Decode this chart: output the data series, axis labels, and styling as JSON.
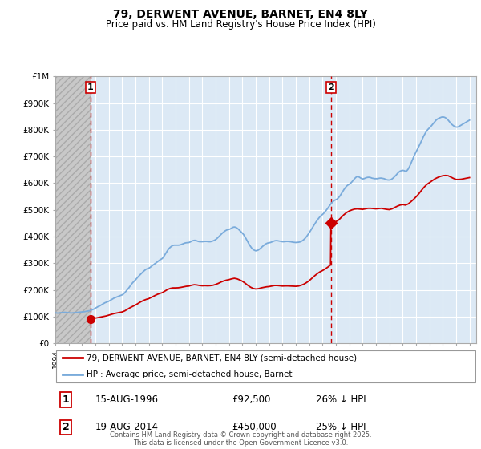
{
  "title": "79, DERWENT AVENUE, BARNET, EN4 8LY",
  "subtitle": "Price paid vs. HM Land Registry's House Price Index (HPI)",
  "legend_line1": "79, DERWENT AVENUE, BARNET, EN4 8LY (semi-detached house)",
  "legend_line2": "HPI: Average price, semi-detached house, Barnet",
  "annotation1_date": "15-AUG-1996",
  "annotation1_price": "£92,500",
  "annotation1_hpi": "26% ↓ HPI",
  "annotation1_year": 1996.62,
  "annotation1_value": 92500,
  "annotation2_date": "19-AUG-2014",
  "annotation2_price": "£450,000",
  "annotation2_hpi": "25% ↓ HPI",
  "annotation2_year": 2014.63,
  "annotation2_value": 450000,
  "background_color": "#ffffff",
  "chart_bg_color": "#dce9f5",
  "grid_color": "#ffffff",
  "red_line_color": "#cc0000",
  "blue_line_color": "#7aabdb",
  "vline_color": "#cc0000",
  "footer": "Contains HM Land Registry data © Crown copyright and database right 2025.\nThis data is licensed under the Open Government Licence v3.0.",
  "xmin": 1994,
  "xmax": 2025.5,
  "ymin": 0,
  "ymax": 1000000,
  "hpi_data": [
    [
      1994.0,
      115000
    ],
    [
      1994.1,
      114000
    ],
    [
      1994.2,
      113500
    ],
    [
      1994.3,
      114500
    ],
    [
      1994.4,
      115000
    ],
    [
      1994.5,
      115500
    ],
    [
      1994.6,
      116000
    ],
    [
      1994.7,
      116500
    ],
    [
      1994.8,
      116000
    ],
    [
      1994.9,
      115500
    ],
    [
      1995.0,
      115000
    ],
    [
      1995.1,
      114500
    ],
    [
      1995.2,
      114000
    ],
    [
      1995.3,
      114500
    ],
    [
      1995.4,
      115000
    ],
    [
      1995.5,
      115500
    ],
    [
      1995.6,
      116000
    ],
    [
      1995.7,
      116500
    ],
    [
      1995.8,
      117000
    ],
    [
      1995.9,
      117500
    ],
    [
      1996.0,
      118000
    ],
    [
      1996.1,
      118500
    ],
    [
      1996.2,
      119000
    ],
    [
      1996.3,
      120000
    ],
    [
      1996.4,
      121000
    ],
    [
      1996.5,
      122000
    ],
    [
      1996.6,
      123000
    ],
    [
      1996.7,
      125000
    ],
    [
      1996.8,
      127000
    ],
    [
      1996.9,
      129000
    ],
    [
      1997.0,
      132000
    ],
    [
      1997.1,
      135000
    ],
    [
      1997.2,
      138000
    ],
    [
      1997.3,
      140000
    ],
    [
      1997.4,
      143000
    ],
    [
      1997.5,
      146000
    ],
    [
      1997.6,
      149000
    ],
    [
      1997.7,
      152000
    ],
    [
      1997.8,
      154000
    ],
    [
      1997.9,
      156000
    ],
    [
      1998.0,
      158000
    ],
    [
      1998.1,
      161000
    ],
    [
      1998.2,
      164000
    ],
    [
      1998.3,
      167000
    ],
    [
      1998.4,
      170000
    ],
    [
      1998.5,
      172000
    ],
    [
      1998.6,
      174000
    ],
    [
      1998.7,
      176000
    ],
    [
      1998.8,
      178000
    ],
    [
      1998.9,
      180000
    ],
    [
      1999.0,
      182000
    ],
    [
      1999.1,
      185000
    ],
    [
      1999.2,
      190000
    ],
    [
      1999.3,
      196000
    ],
    [
      1999.4,
      202000
    ],
    [
      1999.5,
      208000
    ],
    [
      1999.6,
      215000
    ],
    [
      1999.7,
      222000
    ],
    [
      1999.8,
      228000
    ],
    [
      1999.9,
      233000
    ],
    [
      2000.0,
      238000
    ],
    [
      2000.1,
      244000
    ],
    [
      2000.2,
      250000
    ],
    [
      2000.3,
      255000
    ],
    [
      2000.4,
      260000
    ],
    [
      2000.5,
      265000
    ],
    [
      2000.6,
      270000
    ],
    [
      2000.7,
      274000
    ],
    [
      2000.8,
      278000
    ],
    [
      2000.9,
      280000
    ],
    [
      2001.0,
      282000
    ],
    [
      2001.1,
      285000
    ],
    [
      2001.2,
      289000
    ],
    [
      2001.3,
      293000
    ],
    [
      2001.4,
      297000
    ],
    [
      2001.5,
      300000
    ],
    [
      2001.6,
      304000
    ],
    [
      2001.7,
      308000
    ],
    [
      2001.8,
      312000
    ],
    [
      2001.9,
      315000
    ],
    [
      2002.0,
      318000
    ],
    [
      2002.1,
      324000
    ],
    [
      2002.2,
      332000
    ],
    [
      2002.3,
      340000
    ],
    [
      2002.4,
      348000
    ],
    [
      2002.5,
      355000
    ],
    [
      2002.6,
      360000
    ],
    [
      2002.7,
      364000
    ],
    [
      2002.8,
      367000
    ],
    [
      2002.9,
      368000
    ],
    [
      2003.0,
      368000
    ],
    [
      2003.1,
      368000
    ],
    [
      2003.2,
      368000
    ],
    [
      2003.3,
      368500
    ],
    [
      2003.4,
      370000
    ],
    [
      2003.5,
      372000
    ],
    [
      2003.6,
      374000
    ],
    [
      2003.7,
      376000
    ],
    [
      2003.8,
      377000
    ],
    [
      2003.9,
      377500
    ],
    [
      2004.0,
      378000
    ],
    [
      2004.1,
      380000
    ],
    [
      2004.2,
      383000
    ],
    [
      2004.3,
      385000
    ],
    [
      2004.4,
      386000
    ],
    [
      2004.5,
      386000
    ],
    [
      2004.6,
      384000
    ],
    [
      2004.7,
      382000
    ],
    [
      2004.8,
      381000
    ],
    [
      2004.9,
      381000
    ],
    [
      2005.0,
      381000
    ],
    [
      2005.1,
      381500
    ],
    [
      2005.2,
      382000
    ],
    [
      2005.3,
      382000
    ],
    [
      2005.4,
      381500
    ],
    [
      2005.5,
      381000
    ],
    [
      2005.6,
      381000
    ],
    [
      2005.7,
      382000
    ],
    [
      2005.8,
      384000
    ],
    [
      2005.9,
      386000
    ],
    [
      2006.0,
      389000
    ],
    [
      2006.1,
      393000
    ],
    [
      2006.2,
      398000
    ],
    [
      2006.3,
      403000
    ],
    [
      2006.4,
      408000
    ],
    [
      2006.5,
      413000
    ],
    [
      2006.6,
      417000
    ],
    [
      2006.7,
      421000
    ],
    [
      2006.8,
      424000
    ],
    [
      2006.9,
      426000
    ],
    [
      2007.0,
      427000
    ],
    [
      2007.1,
      429000
    ],
    [
      2007.2,
      432000
    ],
    [
      2007.3,
      435000
    ],
    [
      2007.4,
      436000
    ],
    [
      2007.5,
      435000
    ],
    [
      2007.6,
      432000
    ],
    [
      2007.7,
      428000
    ],
    [
      2007.8,
      423000
    ],
    [
      2007.9,
      418000
    ],
    [
      2008.0,
      413000
    ],
    [
      2008.1,
      407000
    ],
    [
      2008.2,
      399000
    ],
    [
      2008.3,
      390000
    ],
    [
      2008.4,
      381000
    ],
    [
      2008.5,
      372000
    ],
    [
      2008.6,
      364000
    ],
    [
      2008.7,
      357000
    ],
    [
      2008.8,
      352000
    ],
    [
      2008.9,
      349000
    ],
    [
      2009.0,
      347000
    ],
    [
      2009.1,
      348000
    ],
    [
      2009.2,
      350000
    ],
    [
      2009.3,
      354000
    ],
    [
      2009.4,
      358000
    ],
    [
      2009.5,
      363000
    ],
    [
      2009.6,
      367000
    ],
    [
      2009.7,
      371000
    ],
    [
      2009.8,
      374000
    ],
    [
      2009.9,
      376000
    ],
    [
      2010.0,
      377000
    ],
    [
      2010.1,
      378000
    ],
    [
      2010.2,
      380000
    ],
    [
      2010.3,
      382000
    ],
    [
      2010.4,
      384000
    ],
    [
      2010.5,
      385000
    ],
    [
      2010.6,
      385000
    ],
    [
      2010.7,
      384000
    ],
    [
      2010.8,
      383000
    ],
    [
      2010.9,
      382000
    ],
    [
      2011.0,
      381000
    ],
    [
      2011.1,
      381000
    ],
    [
      2011.2,
      381500
    ],
    [
      2011.3,
      382000
    ],
    [
      2011.4,
      382000
    ],
    [
      2011.5,
      381500
    ],
    [
      2011.6,
      381000
    ],
    [
      2011.7,
      380000
    ],
    [
      2011.8,
      379000
    ],
    [
      2011.9,
      378500
    ],
    [
      2012.0,
      378000
    ],
    [
      2012.1,
      378500
    ],
    [
      2012.2,
      379000
    ],
    [
      2012.3,
      380000
    ],
    [
      2012.4,
      382000
    ],
    [
      2012.5,
      385000
    ],
    [
      2012.6,
      389000
    ],
    [
      2012.7,
      394000
    ],
    [
      2012.8,
      400000
    ],
    [
      2012.9,
      407000
    ],
    [
      2013.0,
      414000
    ],
    [
      2013.1,
      422000
    ],
    [
      2013.2,
      430000
    ],
    [
      2013.3,
      438000
    ],
    [
      2013.4,
      446000
    ],
    [
      2013.5,
      454000
    ],
    [
      2013.6,
      461000
    ],
    [
      2013.7,
      468000
    ],
    [
      2013.8,
      474000
    ],
    [
      2013.9,
      479000
    ],
    [
      2014.0,
      483000
    ],
    [
      2014.1,
      488000
    ],
    [
      2014.2,
      494000
    ],
    [
      2014.3,
      500000
    ],
    [
      2014.4,
      507000
    ],
    [
      2014.5,
      514000
    ],
    [
      2014.6,
      521000
    ],
    [
      2014.7,
      527000
    ],
    [
      2014.8,
      532000
    ],
    [
      2014.9,
      536000
    ],
    [
      2015.0,
      538000
    ],
    [
      2015.1,
      541000
    ],
    [
      2015.2,
      546000
    ],
    [
      2015.3,
      552000
    ],
    [
      2015.4,
      560000
    ],
    [
      2015.5,
      568000
    ],
    [
      2015.6,
      576000
    ],
    [
      2015.7,
      583000
    ],
    [
      2015.8,
      589000
    ],
    [
      2015.9,
      593000
    ],
    [
      2016.0,
      596000
    ],
    [
      2016.1,
      600000
    ],
    [
      2016.2,
      605000
    ],
    [
      2016.3,
      611000
    ],
    [
      2016.4,
      617000
    ],
    [
      2016.5,
      622000
    ],
    [
      2016.6,
      625000
    ],
    [
      2016.7,
      624000
    ],
    [
      2016.8,
      621000
    ],
    [
      2016.9,
      618000
    ],
    [
      2017.0,
      616000
    ],
    [
      2017.1,
      617000
    ],
    [
      2017.2,
      619000
    ],
    [
      2017.3,
      621000
    ],
    [
      2017.4,
      622000
    ],
    [
      2017.5,
      622000
    ],
    [
      2017.6,
      621000
    ],
    [
      2017.7,
      619000
    ],
    [
      2017.8,
      618000
    ],
    [
      2017.9,
      617000
    ],
    [
      2018.0,
      617000
    ],
    [
      2018.1,
      617000
    ],
    [
      2018.2,
      618000
    ],
    [
      2018.3,
      619000
    ],
    [
      2018.4,
      619000
    ],
    [
      2018.5,
      618000
    ],
    [
      2018.6,
      617000
    ],
    [
      2018.7,
      615000
    ],
    [
      2018.8,
      613000
    ],
    [
      2018.9,
      612000
    ],
    [
      2019.0,
      612000
    ],
    [
      2019.1,
      613000
    ],
    [
      2019.2,
      616000
    ],
    [
      2019.3,
      620000
    ],
    [
      2019.4,
      625000
    ],
    [
      2019.5,
      630000
    ],
    [
      2019.6,
      636000
    ],
    [
      2019.7,
      641000
    ],
    [
      2019.8,
      645000
    ],
    [
      2019.9,
      647000
    ],
    [
      2020.0,
      648000
    ],
    [
      2020.1,
      647000
    ],
    [
      2020.2,
      645000
    ],
    [
      2020.3,
      646000
    ],
    [
      2020.4,
      652000
    ],
    [
      2020.5,
      661000
    ],
    [
      2020.6,
      672000
    ],
    [
      2020.7,
      684000
    ],
    [
      2020.8,
      696000
    ],
    [
      2020.9,
      707000
    ],
    [
      2021.0,
      717000
    ],
    [
      2021.1,
      727000
    ],
    [
      2021.2,
      737000
    ],
    [
      2021.3,
      747000
    ],
    [
      2021.4,
      758000
    ],
    [
      2021.5,
      769000
    ],
    [
      2021.6,
      779000
    ],
    [
      2021.7,
      788000
    ],
    [
      2021.8,
      796000
    ],
    [
      2021.9,
      802000
    ],
    [
      2022.0,
      807000
    ],
    [
      2022.1,
      812000
    ],
    [
      2022.2,
      818000
    ],
    [
      2022.3,
      824000
    ],
    [
      2022.4,
      830000
    ],
    [
      2022.5,
      836000
    ],
    [
      2022.6,
      840000
    ],
    [
      2022.7,
      843000
    ],
    [
      2022.8,
      845000
    ],
    [
      2022.9,
      847000
    ],
    [
      2023.0,
      848000
    ],
    [
      2023.1,
      847000
    ],
    [
      2023.2,
      845000
    ],
    [
      2023.3,
      841000
    ],
    [
      2023.4,
      836000
    ],
    [
      2023.5,
      830000
    ],
    [
      2023.6,
      824000
    ],
    [
      2023.7,
      819000
    ],
    [
      2023.8,
      815000
    ],
    [
      2023.9,
      812000
    ],
    [
      2024.0,
      810000
    ],
    [
      2024.1,
      810000
    ],
    [
      2024.2,
      812000
    ],
    [
      2024.3,
      815000
    ],
    [
      2024.4,
      818000
    ],
    [
      2024.5,
      821000
    ],
    [
      2024.6,
      824000
    ],
    [
      2024.7,
      827000
    ],
    [
      2024.8,
      830000
    ],
    [
      2024.9,
      833000
    ],
    [
      2025.0,
      836000
    ]
  ],
  "red_data": [
    [
      1996.62,
      92500
    ],
    [
      1996.7,
      93000
    ],
    [
      1996.8,
      93500
    ],
    [
      1996.9,
      94000
    ],
    [
      1997.0,
      95000
    ],
    [
      1997.2,
      97000
    ],
    [
      1997.4,
      99000
    ],
    [
      1997.6,
      101000
    ],
    [
      1997.8,
      103000
    ],
    [
      1998.0,
      106000
    ],
    [
      1998.2,
      109000
    ],
    [
      1998.4,
      112000
    ],
    [
      1998.6,
      114000
    ],
    [
      1998.8,
      116000
    ],
    [
      1999.0,
      118000
    ],
    [
      1999.2,
      122000
    ],
    [
      1999.4,
      128000
    ],
    [
      1999.6,
      134000
    ],
    [
      1999.8,
      139000
    ],
    [
      2000.0,
      144000
    ],
    [
      2000.2,
      150000
    ],
    [
      2000.4,
      156000
    ],
    [
      2000.6,
      161000
    ],
    [
      2000.8,
      165000
    ],
    [
      2001.0,
      168000
    ],
    [
      2001.2,
      173000
    ],
    [
      2001.4,
      178000
    ],
    [
      2001.6,
      183000
    ],
    [
      2001.8,
      187000
    ],
    [
      2002.0,
      190000
    ],
    [
      2002.2,
      196000
    ],
    [
      2002.4,
      202000
    ],
    [
      2002.6,
      206000
    ],
    [
      2002.8,
      208000
    ],
    [
      2003.0,
      208000
    ],
    [
      2003.2,
      208500
    ],
    [
      2003.4,
      210000
    ],
    [
      2003.6,
      212000
    ],
    [
      2003.8,
      214000
    ],
    [
      2004.0,
      215000
    ],
    [
      2004.2,
      218000
    ],
    [
      2004.4,
      220000
    ],
    [
      2004.6,
      219000
    ],
    [
      2004.8,
      217000
    ],
    [
      2005.0,
      216000
    ],
    [
      2005.2,
      216500
    ],
    [
      2005.4,
      216000
    ],
    [
      2005.6,
      216500
    ],
    [
      2005.8,
      218000
    ],
    [
      2006.0,
      221000
    ],
    [
      2006.2,
      225000
    ],
    [
      2006.4,
      230000
    ],
    [
      2006.6,
      234000
    ],
    [
      2006.8,
      237000
    ],
    [
      2007.0,
      239000
    ],
    [
      2007.2,
      242000
    ],
    [
      2007.4,
      244000
    ],
    [
      2007.6,
      242000
    ],
    [
      2007.8,
      238000
    ],
    [
      2008.0,
      233000
    ],
    [
      2008.2,
      226000
    ],
    [
      2008.4,
      218000
    ],
    [
      2008.6,
      211000
    ],
    [
      2008.8,
      206000
    ],
    [
      2009.0,
      204000
    ],
    [
      2009.2,
      205000
    ],
    [
      2009.4,
      208000
    ],
    [
      2009.6,
      210000
    ],
    [
      2009.8,
      212000
    ],
    [
      2010.0,
      213000
    ],
    [
      2010.2,
      215000
    ],
    [
      2010.4,
      217000
    ],
    [
      2010.6,
      217000
    ],
    [
      2010.8,
      216000
    ],
    [
      2011.0,
      215000
    ],
    [
      2011.2,
      215500
    ],
    [
      2011.4,
      215500
    ],
    [
      2011.6,
      215000
    ],
    [
      2011.8,
      214500
    ],
    [
      2012.0,
      214000
    ],
    [
      2012.2,
      215000
    ],
    [
      2012.4,
      218000
    ],
    [
      2012.6,
      222000
    ],
    [
      2012.8,
      228000
    ],
    [
      2013.0,
      235000
    ],
    [
      2013.2,
      244000
    ],
    [
      2013.4,
      253000
    ],
    [
      2013.6,
      261000
    ],
    [
      2013.8,
      268000
    ],
    [
      2014.0,
      273000
    ],
    [
      2014.2,
      279000
    ],
    [
      2014.4,
      286000
    ],
    [
      2014.6,
      294000
    ],
    [
      2014.63,
      450000
    ],
    [
      2014.8,
      452000
    ],
    [
      2015.0,
      456000
    ],
    [
      2015.2,
      462000
    ],
    [
      2015.4,
      472000
    ],
    [
      2015.6,
      482000
    ],
    [
      2015.8,
      490000
    ],
    [
      2016.0,
      496000
    ],
    [
      2016.2,
      500000
    ],
    [
      2016.4,
      503000
    ],
    [
      2016.6,
      504000
    ],
    [
      2016.8,
      503000
    ],
    [
      2017.0,
      502000
    ],
    [
      2017.2,
      504000
    ],
    [
      2017.4,
      506000
    ],
    [
      2017.6,
      506000
    ],
    [
      2017.8,
      505000
    ],
    [
      2018.0,
      504000
    ],
    [
      2018.2,
      505000
    ],
    [
      2018.4,
      506000
    ],
    [
      2018.6,
      504000
    ],
    [
      2018.8,
      502000
    ],
    [
      2019.0,
      501000
    ],
    [
      2019.2,
      504000
    ],
    [
      2019.4,
      509000
    ],
    [
      2019.6,
      514000
    ],
    [
      2019.8,
      518000
    ],
    [
      2020.0,
      520000
    ],
    [
      2020.2,
      518000
    ],
    [
      2020.4,
      522000
    ],
    [
      2020.6,
      530000
    ],
    [
      2020.8,
      539000
    ],
    [
      2021.0,
      549000
    ],
    [
      2021.2,
      560000
    ],
    [
      2021.4,
      573000
    ],
    [
      2021.6,
      585000
    ],
    [
      2021.8,
      595000
    ],
    [
      2022.0,
      602000
    ],
    [
      2022.2,
      609000
    ],
    [
      2022.4,
      616000
    ],
    [
      2022.6,
      621000
    ],
    [
      2022.8,
      625000
    ],
    [
      2023.0,
      628000
    ],
    [
      2023.2,
      629000
    ],
    [
      2023.4,
      628000
    ],
    [
      2023.6,
      623000
    ],
    [
      2023.8,
      618000
    ],
    [
      2024.0,
      614000
    ],
    [
      2024.2,
      614000
    ],
    [
      2024.4,
      615000
    ],
    [
      2024.6,
      617000
    ],
    [
      2024.8,
      619000
    ],
    [
      2025.0,
      621000
    ]
  ]
}
